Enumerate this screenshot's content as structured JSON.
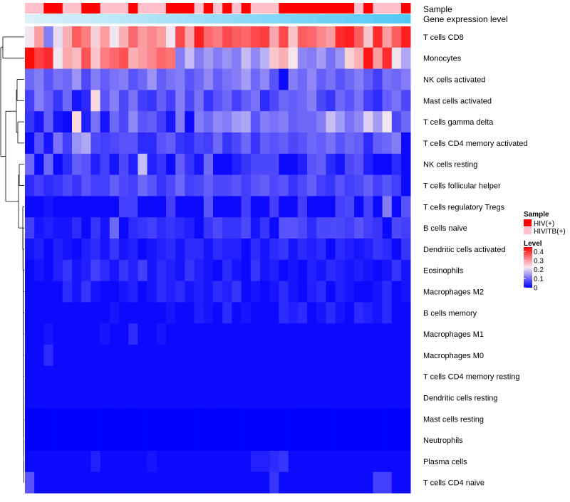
{
  "chart_data": {
    "type": "heatmap",
    "title": "",
    "annotation_tracks": [
      "Sample",
      "Gene expression level"
    ],
    "row_labels": [
      "T cells CD8",
      "Monocytes",
      "NK cells activated",
      "Mast cells activated",
      "T cells gamma delta",
      "T cells CD4 memory activated",
      "NK cells resting",
      "T cells follicular helper",
      "T cells regulatory  Tregs",
      "B cells naive",
      "Dendritic cells activated",
      "Eosinophils",
      "Macrophages M2",
      "B cells memory",
      "Macrophages M1",
      "Macrophages M0",
      "T cells CD4 memory resting",
      "Dendritic cells resting",
      "Mast cells resting",
      "Neutrophils",
      "Plasma cells",
      "T cells CD4 naive"
    ],
    "n_columns": 41,
    "sample_groups": [
      "HIV/TB",
      "HIV/TB",
      "HIV",
      "HIV",
      "HIV/TB",
      "HIV/TB",
      "HIV",
      "HIV",
      "HIV/TB",
      "HIV/TB",
      "HIV/TB",
      "HIV",
      "HIV/TB",
      "HIV/TB",
      "HIV/TB",
      "HIV",
      "HIV",
      "HIV",
      "HIV/TB",
      "HIV",
      "HIV/TB",
      "HIV",
      "HIV/TB",
      "HIV",
      "HIV/TB",
      "HIV/TB",
      "HIV/TB",
      "HIV",
      "HIV",
      "HIV",
      "HIV",
      "HIV",
      "HIV",
      "HIV",
      "HIV",
      "HIV/TB",
      "HIV",
      "HIV/TB",
      "HIV/TB",
      "HIV/TB",
      "HIV"
    ],
    "expression_level": [
      0.0,
      0.025,
      0.05,
      0.075,
      0.1,
      0.125,
      0.15,
      0.175,
      0.2,
      0.225,
      0.25,
      0.275,
      0.3,
      0.325,
      0.35,
      0.375,
      0.4,
      0.425,
      0.45,
      0.475,
      0.5,
      0.525,
      0.55,
      0.575,
      0.6,
      0.625,
      0.65,
      0.675,
      0.7,
      0.725,
      0.75,
      0.775,
      0.8,
      0.825,
      0.85,
      0.875,
      0.9,
      0.925,
      0.95,
      0.975,
      1.0
    ],
    "values": [
      [
        0.22,
        0.3,
        0.12,
        0.21,
        0.28,
        0.36,
        0.33,
        0.25,
        0.3,
        0.22,
        0.28,
        0.35,
        0.3,
        0.32,
        0.3,
        0.22,
        0.38,
        0.29,
        0.42,
        0.35,
        0.33,
        0.38,
        0.36,
        0.35,
        0.38,
        0.39,
        0.29,
        0.38,
        0.26,
        0.36,
        0.35,
        0.32,
        0.3,
        0.41,
        0.42,
        0.36,
        0.26,
        0.41,
        0.3,
        0.36,
        0.42
      ],
      [
        0.44,
        0.39,
        0.41,
        0.22,
        0.29,
        0.27,
        0.37,
        0.26,
        0.33,
        0.35,
        0.37,
        0.28,
        0.3,
        0.32,
        0.35,
        0.34,
        0.12,
        0.18,
        0.12,
        0.15,
        0.12,
        0.14,
        0.12,
        0.18,
        0.13,
        0.17,
        0.26,
        0.28,
        0.23,
        0.13,
        0.12,
        0.15,
        0.11,
        0.14,
        0.25,
        0.28,
        0.43,
        0.3,
        0.41,
        0.22,
        0.16
      ],
      [
        0.1,
        0.12,
        0.08,
        0.11,
        0.1,
        0.14,
        0.07,
        0.12,
        0.09,
        0.11,
        0.12,
        0.08,
        0.1,
        0.14,
        0.09,
        0.11,
        0.12,
        0.08,
        0.1,
        0.13,
        0.09,
        0.11,
        0.12,
        0.15,
        0.1,
        0.13,
        0.08,
        0.01,
        0.12,
        0.1,
        0.13,
        0.09,
        0.11,
        0.08,
        0.1,
        0.12,
        0.09,
        0.06,
        0.11,
        0.1,
        0.12
      ],
      [
        0.06,
        0.12,
        0.09,
        0.05,
        0.1,
        0.02,
        0.04,
        0.24,
        0.08,
        0.12,
        0.07,
        0.11,
        0.06,
        0.05,
        0.09,
        0.06,
        0.12,
        0.07,
        0.11,
        0.05,
        0.08,
        0.1,
        0.06,
        0.09,
        0.11,
        0.04,
        0.07,
        0.1,
        0.09,
        0.1,
        0.12,
        0.07,
        0.05,
        0.1,
        0.08,
        0.11,
        0.06,
        0.04,
        0.09,
        0.11,
        0.07
      ],
      [
        0.05,
        0.02,
        0.09,
        0.02,
        0.01,
        0.24,
        0.03,
        0.11,
        0.02,
        0.1,
        0.07,
        0.13,
        0.08,
        0.09,
        0.06,
        0.02,
        0.12,
        0.01,
        0.12,
        0.1,
        0.13,
        0.12,
        0.15,
        0.16,
        0.08,
        0.12,
        0.11,
        0.12,
        0.09,
        0.1,
        0.1,
        0.12,
        0.18,
        0.15,
        0.11,
        0.13,
        0.2,
        0.15,
        0.22,
        0.07,
        0.1
      ],
      [
        0.01,
        0.08,
        0.02,
        0.11,
        0.06,
        0.14,
        0.16,
        0.07,
        0.06,
        0.07,
        0.08,
        0.08,
        0.04,
        0.04,
        0.08,
        0.09,
        0.05,
        0.04,
        0.07,
        0.06,
        0.1,
        0.05,
        0.07,
        0.1,
        0.05,
        0.09,
        0.08,
        0.09,
        0.07,
        0.08,
        0.1,
        0.09,
        0.11,
        0.08,
        0.1,
        0.09,
        0.04,
        0.09,
        0.1,
        0.12,
        0.01
      ],
      [
        0.1,
        0.01,
        0.1,
        0.01,
        0.04,
        0.09,
        0.08,
        0.03,
        0.06,
        0.02,
        0.07,
        0.03,
        0.18,
        0.03,
        0.05,
        0.01,
        0.09,
        0.05,
        0.02,
        0.1,
        0.01,
        0.01,
        0.03,
        0.05,
        0.07,
        0.07,
        0.07,
        0.01,
        0.01,
        0.03,
        0.08,
        0.09,
        0.04,
        0.02,
        0.07,
        0.08,
        0.03,
        0.01,
        0.01,
        0.04,
        0.01
      ],
      [
        0.04,
        0.06,
        0.04,
        0.05,
        0.07,
        0.05,
        0.08,
        0.06,
        0.06,
        0.09,
        0.07,
        0.06,
        0.1,
        0.08,
        0.05,
        0.07,
        0.1,
        0.06,
        0.07,
        0.09,
        0.07,
        0.07,
        0.08,
        0.06,
        0.08,
        0.09,
        0.07,
        0.08,
        0.05,
        0.07,
        0.09,
        0.06,
        0.05,
        0.08,
        0.06,
        0.07,
        0.09,
        0.06,
        0.08,
        0.06,
        0.01
      ],
      [
        0.01,
        0.01,
        0.02,
        0.01,
        0.01,
        0.01,
        0.01,
        0.01,
        0.01,
        0.01,
        0.06,
        0.06,
        0.01,
        0.01,
        0.01,
        0.06,
        0.01,
        0.01,
        0.01,
        0.08,
        0.01,
        0.01,
        0.01,
        0.06,
        0.01,
        0.01,
        0.06,
        0.01,
        0.01,
        0.06,
        0.01,
        0.01,
        0.01,
        0.06,
        0.07,
        0.01,
        0.06,
        0.01,
        0.12,
        0.01,
        0.08
      ],
      [
        0.06,
        0.02,
        0.03,
        0.02,
        0.02,
        0.04,
        0.01,
        0.05,
        0.02,
        0.1,
        0.01,
        0.04,
        0.05,
        0.06,
        0.04,
        0.05,
        0.04,
        0.03,
        0.01,
        0.05,
        0.07,
        0.05,
        0.05,
        0.07,
        0.02,
        0.05,
        0.01,
        0.08,
        0.08,
        0.07,
        0.04,
        0.07,
        0.07,
        0.07,
        0.06,
        0.08,
        0.06,
        0.05,
        0.01,
        0.07,
        0.06
      ],
      [
        0.02,
        0.03,
        0.01,
        0.03,
        0.02,
        0.01,
        0.03,
        0.04,
        0.02,
        0.05,
        0.02,
        0.03,
        0.01,
        0.02,
        0.03,
        0.04,
        0.02,
        0.04,
        0.04,
        0.02,
        0.04,
        0.03,
        0.03,
        0.01,
        0.04,
        0.02,
        0.04,
        0.05,
        0.02,
        0.04,
        0.03,
        0.04,
        0.01,
        0.04,
        0.03,
        0.02,
        0.03,
        0.05,
        0.04,
        0.01,
        0.05
      ],
      [
        0.01,
        0.02,
        0.01,
        0.03,
        0.05,
        0.02,
        0.03,
        0.06,
        0.04,
        0.02,
        0.05,
        0.03,
        0.06,
        0.02,
        0.04,
        0.03,
        0.02,
        0.05,
        0.03,
        0.02,
        0.01,
        0.04,
        0.02,
        0.01,
        0.05,
        0.02,
        0.03,
        0.01,
        0.02,
        0.01,
        0.03,
        0.02,
        0.04,
        0.03,
        0.02,
        0.03,
        0.02,
        0.01,
        0.02,
        0.05,
        0.02
      ],
      [
        0.01,
        0.01,
        0.01,
        0.01,
        0.04,
        0.02,
        0.05,
        0.02,
        0.01,
        0.01,
        0.02,
        0.03,
        0.01,
        0.02,
        0.04,
        0.03,
        0.04,
        0.02,
        0.03,
        0.02,
        0.04,
        0.03,
        0.05,
        0.01,
        0.02,
        0.01,
        0.02,
        0.04,
        0.02,
        0.01,
        0.03,
        0.04,
        0.01,
        0.03,
        0.02,
        0.01,
        0.01,
        0.02,
        0.04,
        0.01,
        0.02
      ],
      [
        0.01,
        0.01,
        0.01,
        0.01,
        0.01,
        0.01,
        0.01,
        0.01,
        0.01,
        0.02,
        0.01,
        0.01,
        0.01,
        0.01,
        0.01,
        0.02,
        0.01,
        0.01,
        0.03,
        0.02,
        0.01,
        0.04,
        0.01,
        0.02,
        0.01,
        0.01,
        0.01,
        0.04,
        0.03,
        0.04,
        0.01,
        0.02,
        0.04,
        0.02,
        0.01,
        0.04,
        0.03,
        0.02,
        0.04,
        0.01,
        0.01
      ],
      [
        0.01,
        0.01,
        0.02,
        0.01,
        0.01,
        0.01,
        0.01,
        0.01,
        0.02,
        0.01,
        0.01,
        0.04,
        0.01,
        0.01,
        0.02,
        0.01,
        0.01,
        0.01,
        0.01,
        0.01,
        0.01,
        0.01,
        0.01,
        0.01,
        0.01,
        0.01,
        0.01,
        0.01,
        0.01,
        0.01,
        0.01,
        0.01,
        0.01,
        0.01,
        0.01,
        0.01,
        0.01,
        0.01,
        0.01,
        0.01,
        0.01
      ],
      [
        0.01,
        0.01,
        0.04,
        0.01,
        0.01,
        0.01,
        0.01,
        0.01,
        0.01,
        0.01,
        0.01,
        0.01,
        0.01,
        0.01,
        0.01,
        0.01,
        0.01,
        0.01,
        0.01,
        0.01,
        0.01,
        0.01,
        0.01,
        0.01,
        0.01,
        0.01,
        0.01,
        0.01,
        0.01,
        0.01,
        0.01,
        0.01,
        0.01,
        0.01,
        0.01,
        0.01,
        0.01,
        0.01,
        0.01,
        0.01,
        0.01
      ],
      [
        0.01,
        0.01,
        0.01,
        0.01,
        0.01,
        0.01,
        0.01,
        0.01,
        0.01,
        0.01,
        0.01,
        0.01,
        0.01,
        0.01,
        0.01,
        0.01,
        0.01,
        0.01,
        0.01,
        0.01,
        0.01,
        0.01,
        0.01,
        0.01,
        0.01,
        0.01,
        0.01,
        0.01,
        0.01,
        0.01,
        0.01,
        0.01,
        0.01,
        0.01,
        0.01,
        0.01,
        0.01,
        0.01,
        0.01,
        0.01,
        0.01
      ],
      [
        0.01,
        0.01,
        0.01,
        0.01,
        0.01,
        0.01,
        0.01,
        0.01,
        0.01,
        0.01,
        0.01,
        0.01,
        0.01,
        0.01,
        0.01,
        0.01,
        0.01,
        0.01,
        0.01,
        0.01,
        0.01,
        0.01,
        0.01,
        0.01,
        0.01,
        0.01,
        0.01,
        0.01,
        0.01,
        0.01,
        0.01,
        0.01,
        0.01,
        0.01,
        0.01,
        0.01,
        0.01,
        0.01,
        0.01,
        0.01,
        0.01
      ],
      [
        0.0,
        0.0,
        0.0,
        0.0,
        0.0,
        0.0,
        0.0,
        0.0,
        0.0,
        0.0,
        0.0,
        0.0,
        0.0,
        0.0,
        0.0,
        0.0,
        0.0,
        0.0,
        0.0,
        0.0,
        0.0,
        0.0,
        0.0,
        0.0,
        0.0,
        0.0,
        0.0,
        0.0,
        0.0,
        0.0,
        0.0,
        0.0,
        0.0,
        0.0,
        0.0,
        0.0,
        0.0,
        0.0,
        0.0,
        0.0,
        0.0
      ],
      [
        0.0,
        0.0,
        0.0,
        0.0,
        0.0,
        0.0,
        0.0,
        0.0,
        0.0,
        0.0,
        0.0,
        0.0,
        0.0,
        0.0,
        0.0,
        0.0,
        0.0,
        0.0,
        0.0,
        0.0,
        0.0,
        0.0,
        0.0,
        0.0,
        0.0,
        0.0,
        0.0,
        0.0,
        0.0,
        0.0,
        0.0,
        0.0,
        0.0,
        0.0,
        0.0,
        0.0,
        0.0,
        0.0,
        0.0,
        0.0,
        0.0
      ],
      [
        0.01,
        0.01,
        0.01,
        0.01,
        0.01,
        0.01,
        0.01,
        0.03,
        0.01,
        0.01,
        0.01,
        0.01,
        0.01,
        0.02,
        0.01,
        0.01,
        0.01,
        0.01,
        0.01,
        0.01,
        0.01,
        0.01,
        0.01,
        0.01,
        0.03,
        0.03,
        0.04,
        0.05,
        0.01,
        0.01,
        0.01,
        0.01,
        0.01,
        0.01,
        0.01,
        0.01,
        0.01,
        0.01,
        0.01,
        0.01,
        0.01
      ],
      [
        0.08,
        0.01,
        0.01,
        0.01,
        0.01,
        0.01,
        0.01,
        0.01,
        0.01,
        0.01,
        0.01,
        0.01,
        0.01,
        0.01,
        0.01,
        0.01,
        0.01,
        0.01,
        0.01,
        0.01,
        0.01,
        0.01,
        0.01,
        0.01,
        0.01,
        0.01,
        0.05,
        0.01,
        0.01,
        0.01,
        0.01,
        0.01,
        0.01,
        0.01,
        0.01,
        0.01,
        0.01,
        0.06,
        0.06,
        0.01,
        0.01
      ]
    ],
    "colorbar": {
      "title": "Level",
      "ticks": [
        "0.4",
        "0.3",
        "0.2",
        "0.1",
        "0"
      ],
      "range": [
        0,
        0.45
      ]
    },
    "colors": {
      "low": "#0000ff",
      "mid": "#f8eaf0",
      "high": "#ff0000"
    },
    "legend": {
      "title": "Sample",
      "entries": [
        {
          "label": "HIV(+)",
          "color": "#ff0000"
        },
        {
          "label": "HIV/TB(+)",
          "color": "#ffc0cb"
        }
      ]
    },
    "dendrogram": "rows clustered"
  }
}
